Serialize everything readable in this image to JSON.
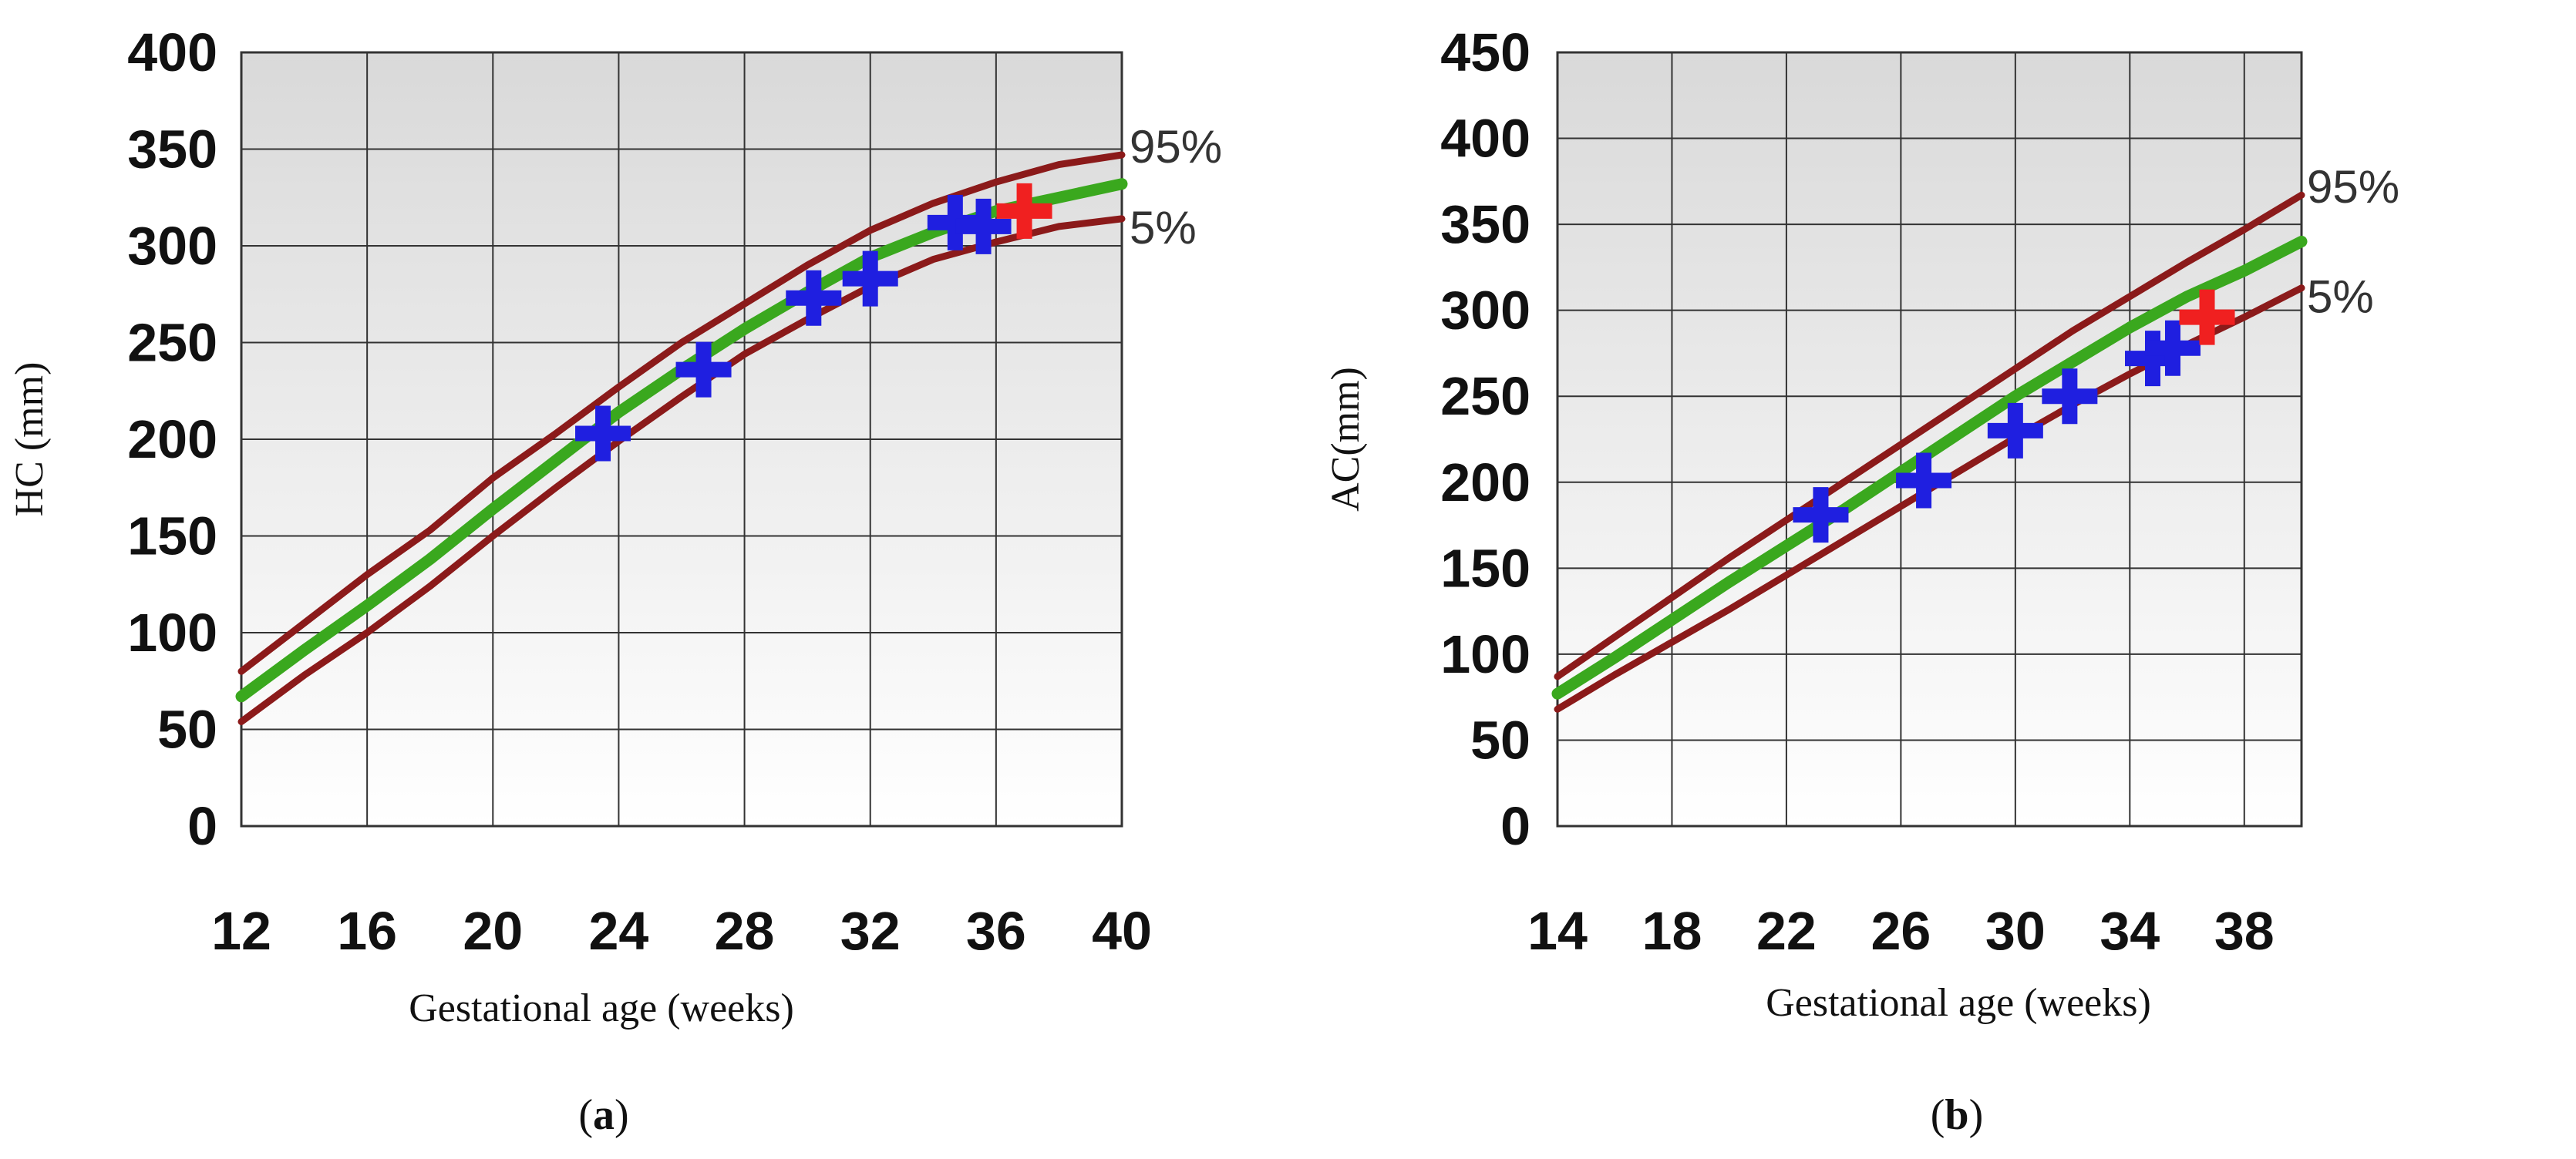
{
  "chart_data": [
    {
      "type": "line",
      "panel_label": "a",
      "ylabel": "HC (mm)",
      "xlabel": "Gestational age (weeks)",
      "xlim": [
        12,
        40
      ],
      "ylim": [
        0,
        400
      ],
      "x_ticks": [
        12,
        16,
        20,
        24,
        28,
        32,
        36,
        40
      ],
      "y_ticks": [
        0,
        50,
        100,
        150,
        200,
        250,
        300,
        350,
        400
      ],
      "grid": true,
      "series": [
        {
          "name": "95%",
          "color": "#8b1a1a",
          "points": [
            [
              12,
              80
            ],
            [
              14,
              105
            ],
            [
              16,
              130
            ],
            [
              18,
              153
            ],
            [
              20,
              180
            ],
            [
              22,
              203
            ],
            [
              24,
              227
            ],
            [
              26,
              250
            ],
            [
              28,
              270
            ],
            [
              30,
              290
            ],
            [
              32,
              308
            ],
            [
              34,
              322
            ],
            [
              36,
              333
            ],
            [
              38,
              342
            ],
            [
              40,
              347
            ]
          ]
        },
        {
          "color": "#3aa81e",
          "points": [
            [
              12,
              67
            ],
            [
              14,
              91
            ],
            [
              16,
              114
            ],
            [
              18,
              138
            ],
            [
              20,
              164
            ],
            [
              22,
              189
            ],
            [
              24,
              214
            ],
            [
              26,
              236
            ],
            [
              28,
              257
            ],
            [
              30,
              276
            ],
            [
              32,
              294
            ],
            [
              34,
              307
            ],
            [
              36,
              318
            ],
            [
              38,
              325
            ],
            [
              40,
              332
            ]
          ]
        },
        {
          "name": "5%",
          "color": "#8b1a1a",
          "points": [
            [
              12,
              54
            ],
            [
              14,
              78
            ],
            [
              16,
              100
            ],
            [
              18,
              124
            ],
            [
              20,
              150
            ],
            [
              22,
              175
            ],
            [
              24,
              199
            ],
            [
              26,
              222
            ],
            [
              28,
              244
            ],
            [
              30,
              262
            ],
            [
              32,
              279
            ],
            [
              34,
              293
            ],
            [
              36,
              302
            ],
            [
              38,
              310
            ],
            [
              40,
              314
            ]
          ]
        }
      ],
      "measurements": [
        {
          "x": 23.5,
          "y": 203,
          "color": "#1f1fe0"
        },
        {
          "x": 26.7,
          "y": 236,
          "color": "#1f1fe0"
        },
        {
          "x": 30.2,
          "y": 273,
          "color": "#1f1fe0"
        },
        {
          "x": 32.0,
          "y": 283,
          "color": "#1f1fe0"
        },
        {
          "x": 34.7,
          "y": 312,
          "color": "#1f1fe0"
        },
        {
          "x": 35.6,
          "y": 310,
          "color": "#1f1fe0"
        },
        {
          "x": 36.9,
          "y": 318,
          "color": "#f02020"
        }
      ]
    },
    {
      "type": "line",
      "panel_label": "b",
      "ylabel": "AC(mm)",
      "xlabel": "Gestational age (weeks)",
      "xlim": [
        14,
        40
      ],
      "ylim": [
        0,
        450
      ],
      "x_ticks": [
        14,
        18,
        22,
        26,
        30,
        34,
        38
      ],
      "y_ticks": [
        0,
        50,
        100,
        150,
        200,
        250,
        300,
        350,
        400,
        450
      ],
      "grid": true,
      "series": [
        {
          "name": "95%",
          "color": "#8b1a1a",
          "points": [
            [
              14,
              87
            ],
            [
              16,
              110
            ],
            [
              18,
              133
            ],
            [
              20,
              156
            ],
            [
              22,
              178
            ],
            [
              24,
              200
            ],
            [
              26,
              222
            ],
            [
              28,
              244
            ],
            [
              30,
              266
            ],
            [
              32,
              288
            ],
            [
              34,
              308
            ],
            [
              36,
              328
            ],
            [
              38,
              347
            ],
            [
              40,
              367
            ]
          ]
        },
        {
          "color": "#3aa81e",
          "points": [
            [
              14,
              77
            ],
            [
              16,
              98
            ],
            [
              18,
              120
            ],
            [
              20,
              142
            ],
            [
              22,
              163
            ],
            [
              24,
              184
            ],
            [
              26,
              206
            ],
            [
              28,
              228
            ],
            [
              30,
              250
            ],
            [
              32,
              270
            ],
            [
              34,
              290
            ],
            [
              36,
              308
            ],
            [
              38,
              323
            ],
            [
              40,
              340
            ]
          ]
        },
        {
          "name": "5%",
          "color": "#8b1a1a",
          "points": [
            [
              14,
              68
            ],
            [
              16,
              88
            ],
            [
              18,
              107
            ],
            [
              20,
              126
            ],
            [
              22,
              146
            ],
            [
              24,
              166
            ],
            [
              26,
              186
            ],
            [
              28,
              206
            ],
            [
              30,
              226
            ],
            [
              32,
              245
            ],
            [
              34,
              263
            ],
            [
              36,
              280
            ],
            [
              38,
              296
            ],
            [
              40,
              313
            ]
          ]
        }
      ],
      "measurements": [
        {
          "x": 23.2,
          "y": 181,
          "color": "#1f1fe0"
        },
        {
          "x": 26.8,
          "y": 201,
          "color": "#1f1fe0"
        },
        {
          "x": 30.0,
          "y": 230,
          "color": "#1f1fe0"
        },
        {
          "x": 31.9,
          "y": 250,
          "color": "#1f1fe0"
        },
        {
          "x": 34.8,
          "y": 272,
          "color": "#1f1fe0"
        },
        {
          "x": 35.5,
          "y": 278,
          "color": "#1f1fe0"
        },
        {
          "x": 36.7,
          "y": 296,
          "color": "#f02020"
        }
      ]
    }
  ]
}
